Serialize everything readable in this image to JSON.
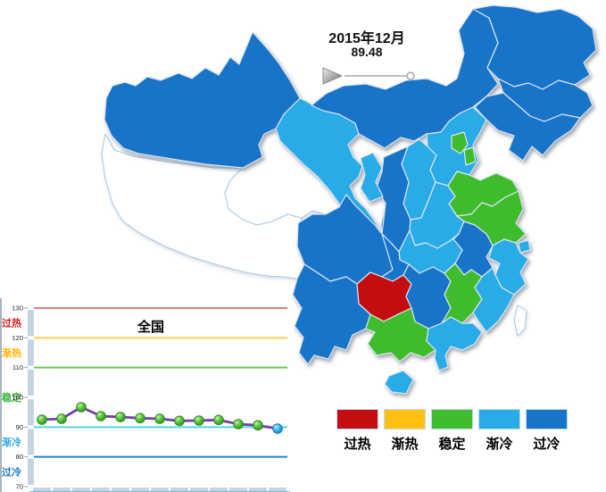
{
  "timeline": {
    "date_label": "2015年12月",
    "value_label": "89.48"
  },
  "legend": {
    "items": [
      {
        "label": "过热",
        "status": "overheat",
        "color": "#C40D10"
      },
      {
        "label": "渐热",
        "status": "warming",
        "color": "#FFC011"
      },
      {
        "label": "稳定",
        "status": "stable",
        "color": "#3FBC2D"
      },
      {
        "label": "渐冷",
        "status": "cooling",
        "color": "#29ABE8"
      },
      {
        "label": "过冷",
        "status": "overcool",
        "color": "#1874C8"
      }
    ]
  },
  "map": {
    "no_data_fill": "#FFFFFF",
    "no_data_border": "#A9C7E7",
    "border_color": "#DCE6F0",
    "provinces": [
      {
        "name": "新疆",
        "status": "overcool"
      },
      {
        "name": "西藏",
        "status": "none"
      },
      {
        "name": "青海",
        "status": "none"
      },
      {
        "name": "甘肃",
        "status": "cooling"
      },
      {
        "name": "内蒙古",
        "status": "overcool"
      },
      {
        "name": "黑龙江",
        "status": "overcool"
      },
      {
        "name": "吉林",
        "status": "overcool"
      },
      {
        "name": "辽宁",
        "status": "overcool"
      },
      {
        "name": "河北",
        "status": "cooling"
      },
      {
        "name": "北京",
        "status": "stable"
      },
      {
        "name": "天津",
        "status": "stable"
      },
      {
        "name": "山西",
        "status": "cooling"
      },
      {
        "name": "山东",
        "status": "stable"
      },
      {
        "name": "陕西",
        "status": "overcool"
      },
      {
        "name": "宁夏",
        "status": "cooling"
      },
      {
        "name": "河南",
        "status": "cooling"
      },
      {
        "name": "江苏",
        "status": "stable"
      },
      {
        "name": "安徽",
        "status": "overcool"
      },
      {
        "name": "上海",
        "status": "cooling"
      },
      {
        "name": "湖北",
        "status": "cooling"
      },
      {
        "name": "浙江",
        "status": "cooling"
      },
      {
        "name": "四川",
        "status": "overcool"
      },
      {
        "name": "重庆",
        "status": "overcool"
      },
      {
        "name": "贵州",
        "status": "overheat"
      },
      {
        "name": "湖南",
        "status": "overcool"
      },
      {
        "name": "江西",
        "status": "stable"
      },
      {
        "name": "福建",
        "status": "cooling"
      },
      {
        "name": "云南",
        "status": "overcool"
      },
      {
        "name": "广西",
        "status": "stable"
      },
      {
        "name": "广东",
        "status": "cooling"
      },
      {
        "name": "海南",
        "status": "cooling"
      },
      {
        "name": "台湾",
        "status": "none"
      }
    ]
  },
  "chart_data": {
    "type": "line",
    "title": "全国",
    "current_value": 89.48,
    "values": [
      92.5,
      92.8,
      96.7,
      93.7,
      93.4,
      93.0,
      92.8,
      92.1,
      92.2,
      92.4,
      91.0,
      90.6,
      89.48
    ],
    "ylim": [
      70,
      130
    ],
    "y_ticks": [
      130,
      120,
      110,
      100,
      90,
      80,
      70
    ],
    "zone_lines": [
      {
        "value": 130,
        "color": "#E47C7C"
      },
      {
        "value": 120,
        "color": "#FFD050"
      },
      {
        "value": 110,
        "color": "#69C94E"
      },
      {
        "value": 90,
        "color": "#4FD6E6"
      },
      {
        "value": 80,
        "color": "#1F86CC"
      }
    ],
    "zones": [
      {
        "label": "过热",
        "center": 125,
        "color": "#D62020"
      },
      {
        "label": "渐热",
        "center": 115,
        "color": "#FFB400"
      },
      {
        "label": "稳定",
        "center": 100,
        "color": "#33B033"
      },
      {
        "label": "渐冷",
        "center": 85,
        "color": "#2AA6E4"
      },
      {
        "label": "过冷",
        "center": 75,
        "color": "#1B7EC8"
      }
    ],
    "series_color": "#7440A8",
    "marker_color": "#3FAE28",
    "last_marker_color": "#29A9E0",
    "axis_band_color": "#C6D4E2",
    "grid": false,
    "legend_position": "bottom-right"
  }
}
